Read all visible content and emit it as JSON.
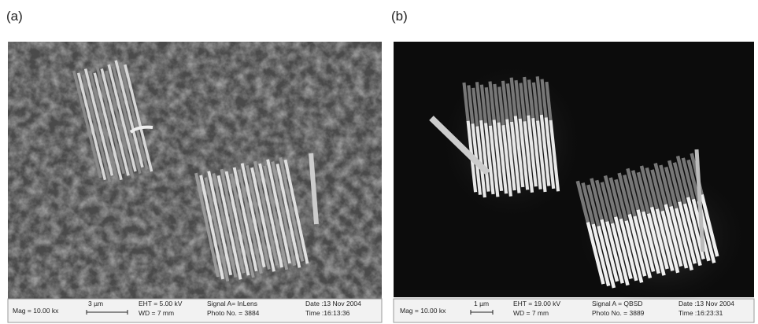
{
  "panels": [
    {
      "label": "(a)",
      "info": {
        "mag": "Mag = 10.00 kx",
        "scale": "3 µm",
        "eht": "EHT = 5.00 kV",
        "wd": "WD = 7 mm",
        "signal": "Signal A= InLens",
        "photo": "Photo No. = 3884",
        "date": "Date :13 Nov 2004",
        "time": "Time :16:13:36"
      }
    },
    {
      "label": "(b)",
      "info": {
        "mag": "Mag = 10.00 kx",
        "scale": "1 µm",
        "eht": "EHT = 19.00 kV",
        "wd": "WD = 7 mm",
        "signal": "Signal A = QBSD",
        "photo": "Photo No. = 3889",
        "date": "Date :13 Nov 2004",
        "time": "Time :16:23:31"
      }
    }
  ]
}
